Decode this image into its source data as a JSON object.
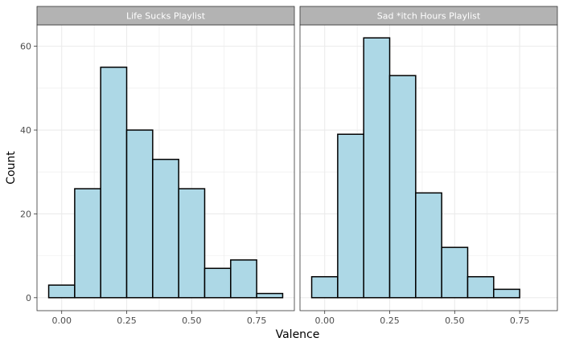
{
  "chart_data": {
    "type": "bar",
    "subtype": "faceted-histogram",
    "xlabel": "Valence",
    "ylabel": "Count",
    "x_ticks": [
      "0.00",
      "0.25",
      "0.50",
      "0.75"
    ],
    "y_ticks": [
      "0",
      "20",
      "40",
      "60"
    ],
    "xlim": [
      -0.095,
      0.895
    ],
    "ylim": [
      -3.1,
      65.1
    ],
    "bin_edges": [
      -0.05,
      0.05,
      0.15,
      0.25,
      0.35,
      0.45,
      0.55,
      0.65,
      0.75,
      0.85
    ],
    "fill_color": "#add8e6",
    "outline_color": "#000000",
    "panel_background": "#ffffff",
    "grid_color": "#ebebeb",
    "strip_background": "#b3b3b3",
    "grid": true,
    "facets": [
      {
        "title": "Life Sucks Playlist",
        "values": [
          3,
          26,
          55,
          40,
          33,
          26,
          7,
          9,
          1
        ]
      },
      {
        "title": "Sad *itch Hours Playlist",
        "values": [
          5,
          39,
          62,
          53,
          25,
          12,
          5,
          2,
          0
        ]
      }
    ]
  }
}
